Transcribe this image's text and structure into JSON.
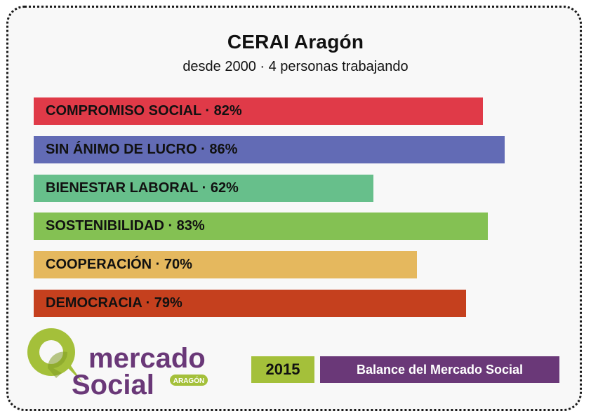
{
  "chart_data": {
    "type": "bar",
    "orientation": "horizontal",
    "title": "CERAI Aragón",
    "subtitle": "desde 2000 · 4 personas trabajando",
    "xlim": [
      0,
      100
    ],
    "categories": [
      "COMPROMISO SOCIAL",
      "SIN ÁNIMO DE LUCRO",
      "BIENESTAR LABORAL",
      "SOSTENIBILIDAD",
      "COOPERACIÓN",
      "DEMOCRACIA"
    ],
    "values": [
      82,
      86,
      62,
      83,
      70,
      79
    ],
    "labels": [
      "COMPROMISO SOCIAL · 82%",
      "SIN ÁNIMO DE LUCRO · 86%",
      "BIENESTAR LABORAL · 62%",
      "SOSTENIBILIDAD · 83%",
      "COOPERACIÓN · 70%",
      "DEMOCRACIA · 79%"
    ],
    "colors": [
      "#e03a48",
      "#626bb5",
      "#67bf8b",
      "#84c153",
      "#e5b85e",
      "#c5401e"
    ]
  },
  "footer": {
    "logo_word1": "mercado",
    "logo_word2": "Social",
    "logo_region": "ARAGÓN",
    "year": "2015",
    "balance_label": "Balance del Mercado Social"
  },
  "colors": {
    "logo_green": "#a4c03a",
    "logo_purple": "#6a3878"
  }
}
